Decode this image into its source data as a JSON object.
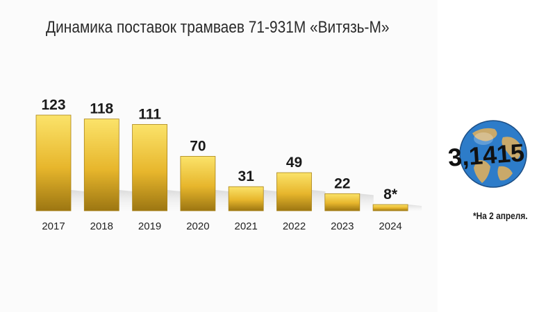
{
  "title": "Динамика поставок трамваев 71-931М «Витязь-М»",
  "footnote": "*На 2 апреля.",
  "logo_text": "3,1415",
  "colors": {
    "bar_top": "#fbe36a",
    "bar_mid": "#e7b62c",
    "bar_bottom": "#9c7612",
    "globe_sea": "#2d7cc9",
    "globe_land": "#c9a96a"
  },
  "chart_data": {
    "type": "bar",
    "categories": [
      "2017",
      "2018",
      "2019",
      "2020",
      "2021",
      "2022",
      "2023",
      "2024"
    ],
    "values": [
      123,
      118,
      111,
      70,
      31,
      49,
      22,
      8
    ],
    "value_labels": [
      "123",
      "118",
      "111",
      "70",
      "31",
      "49",
      "22",
      "8*"
    ],
    "ylim": [
      0,
      123
    ],
    "legend": "none",
    "grid": false
  }
}
